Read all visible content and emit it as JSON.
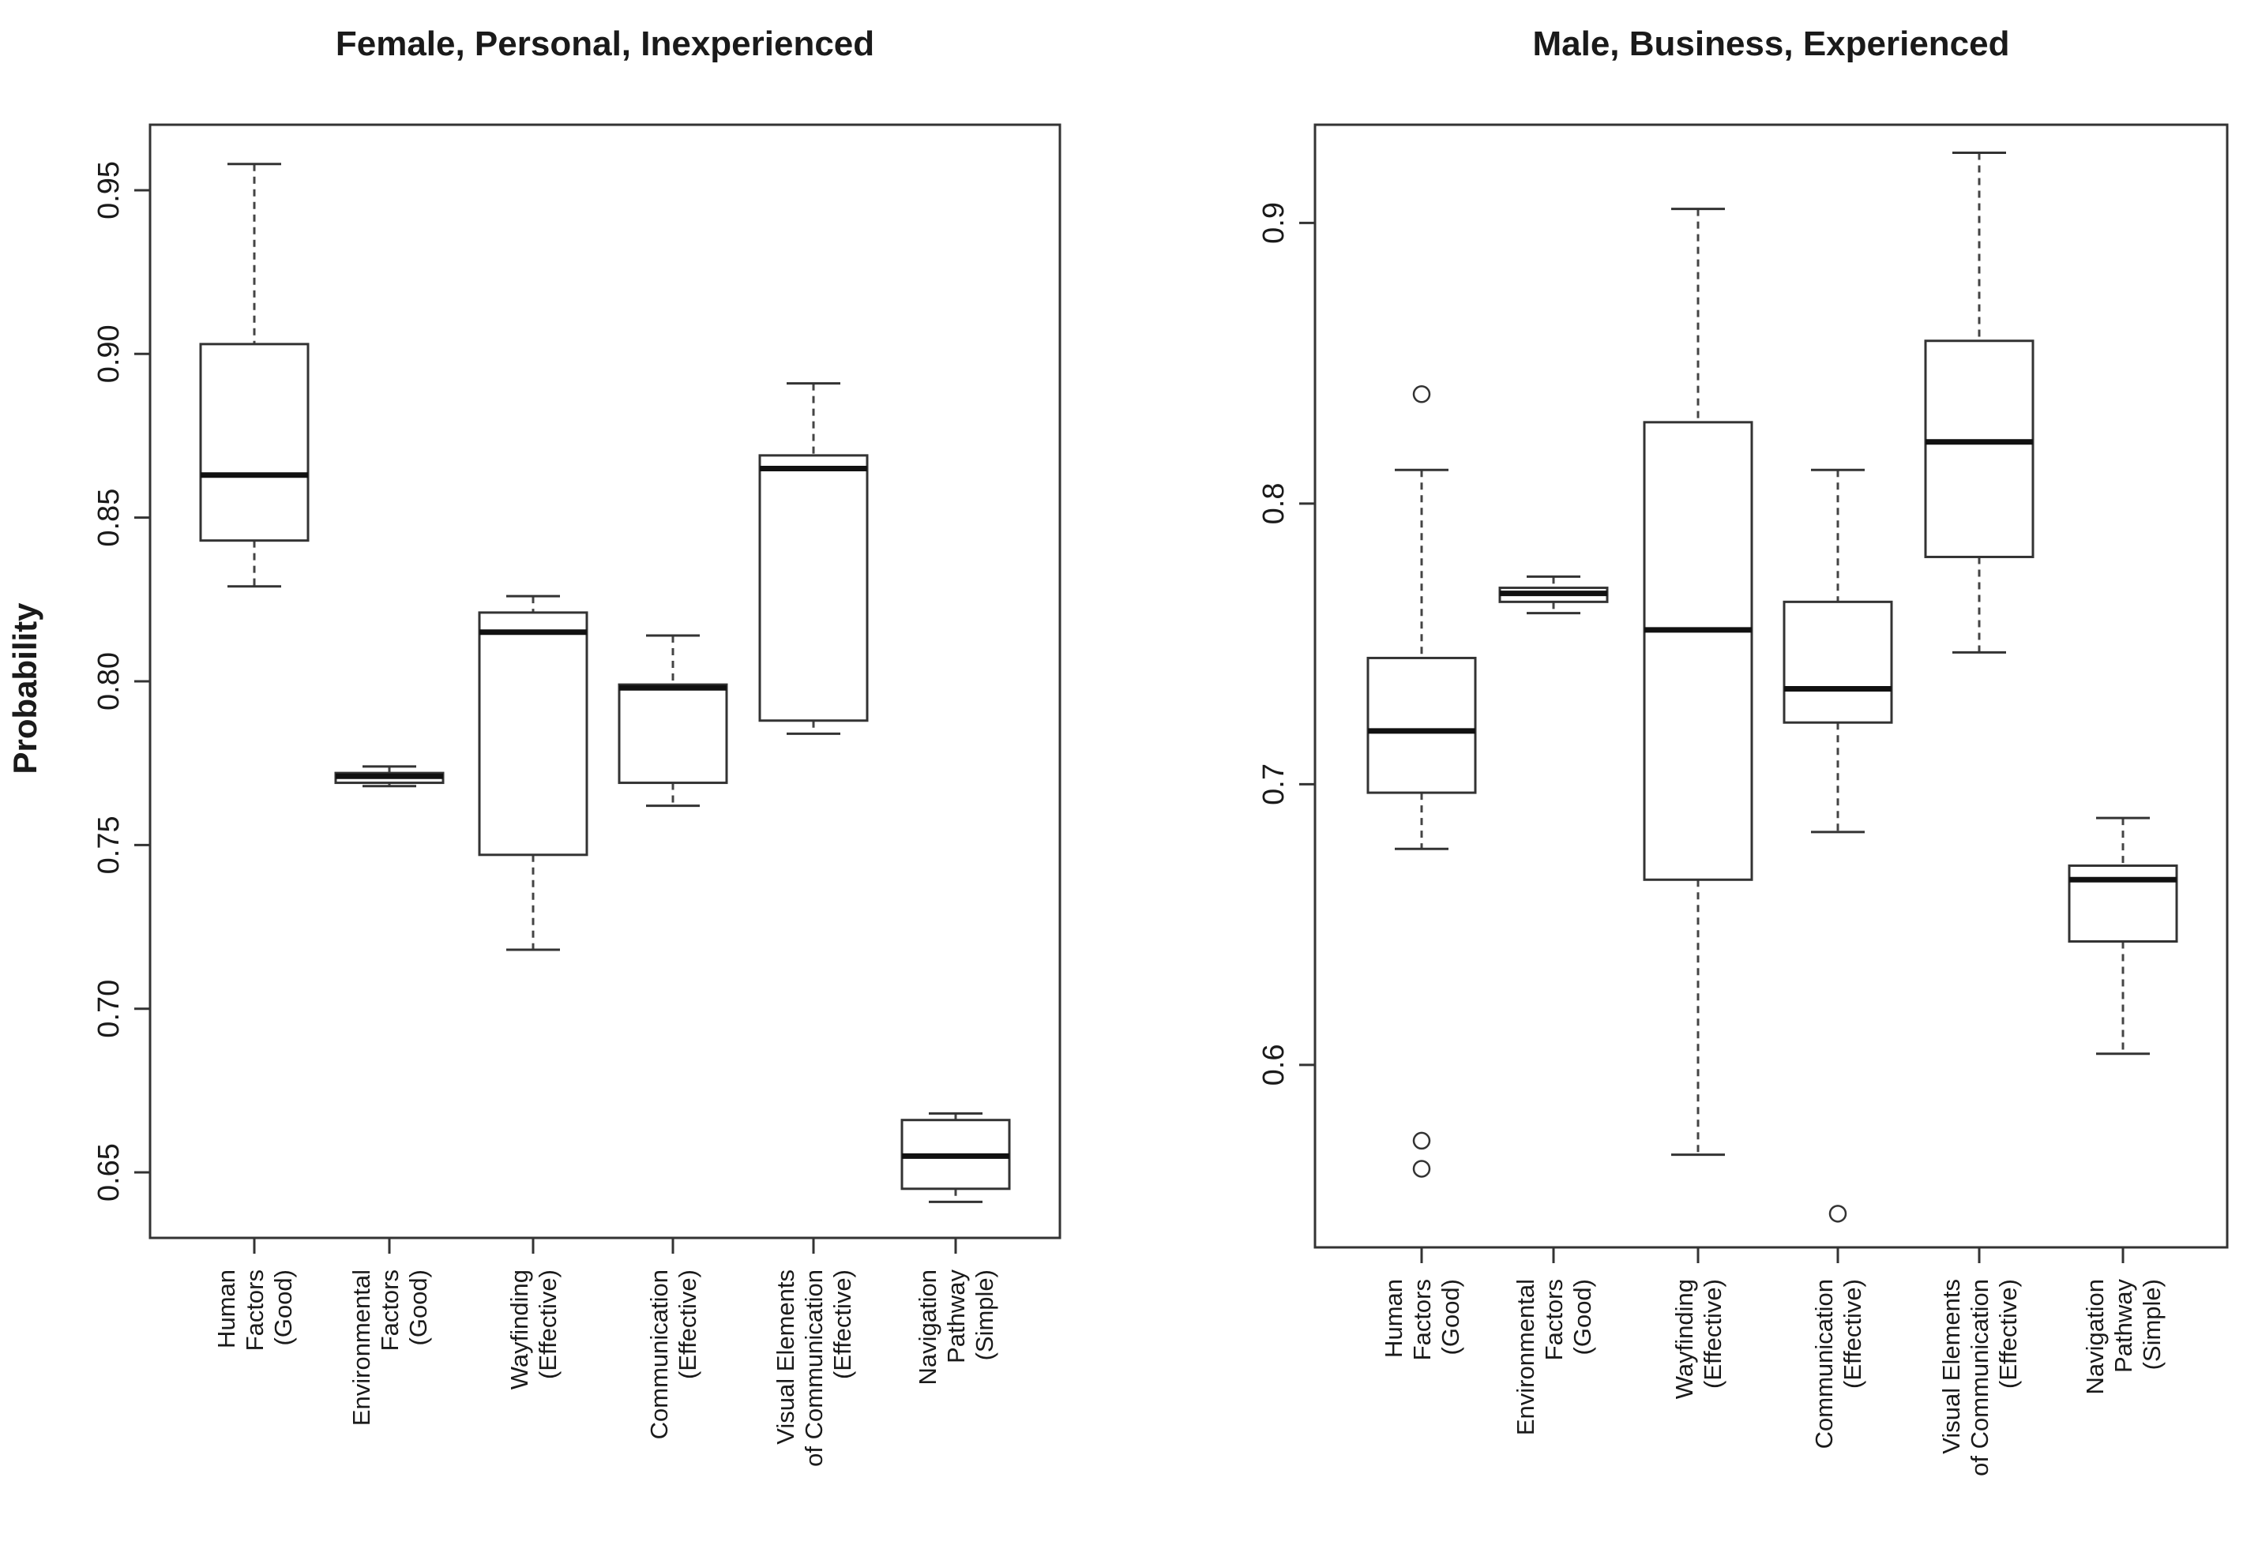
{
  "chart_data": [
    {
      "type": "boxplot",
      "title": "Female, Personal, Inexperienced",
      "xlabel": "",
      "ylabel": "Probability",
      "ylim": [
        0.63,
        0.97
      ],
      "yticks": [
        0.65,
        0.7,
        0.75,
        0.8,
        0.85,
        0.9,
        0.95
      ],
      "ytick_labels": [
        "0.65",
        "0.70",
        "0.75",
        "0.80",
        "0.85",
        "0.90",
        "0.95"
      ],
      "grid": false,
      "categories": [
        [
          "Human",
          "Factors",
          "(Good)"
        ],
        [
          "Environmental",
          "Factors",
          "(Good)"
        ],
        [
          "Wayfinding",
          "(Effective)"
        ],
        [
          "Communication",
          "(Effective)"
        ],
        [
          "Visual Elements",
          "of Communication",
          "(Effective)"
        ],
        [
          "Navigation",
          "Pathway",
          "(Simple)"
        ]
      ],
      "boxes": [
        {
          "whisker_low": 0.829,
          "q1": 0.843,
          "median": 0.863,
          "q3": 0.903,
          "whisker_high": 0.958,
          "outliers": []
        },
        {
          "whisker_low": 0.768,
          "q1": 0.769,
          "median": 0.771,
          "q3": 0.772,
          "whisker_high": 0.774,
          "outliers": []
        },
        {
          "whisker_low": 0.718,
          "q1": 0.747,
          "median": 0.815,
          "q3": 0.821,
          "whisker_high": 0.826,
          "outliers": []
        },
        {
          "whisker_low": 0.762,
          "q1": 0.769,
          "median": 0.798,
          "q3": 0.799,
          "whisker_high": 0.814,
          "outliers": []
        },
        {
          "whisker_low": 0.784,
          "q1": 0.788,
          "median": 0.865,
          "q3": 0.869,
          "whisker_high": 0.891,
          "outliers": []
        },
        {
          "whisker_low": 0.641,
          "q1": 0.645,
          "median": 0.655,
          "q3": 0.666,
          "whisker_high": 0.668,
          "outliers": []
        }
      ]
    },
    {
      "type": "boxplot",
      "title": "Male, Business, Experienced",
      "xlabel": "",
      "ylabel": "",
      "ylim": [
        0.535,
        0.935
      ],
      "yticks": [
        0.6,
        0.7,
        0.8,
        0.9
      ],
      "ytick_labels": [
        "0.6",
        "0.7",
        "0.8",
        "0.9"
      ],
      "grid": false,
      "categories": [
        [
          "Human",
          "Factors",
          "(Good)"
        ],
        [
          "Environmental",
          "Factors",
          "(Good)"
        ],
        [
          "Wayfinding",
          "(Effective)"
        ],
        [
          "Communication",
          "(Effective)"
        ],
        [
          "Visual Elements",
          "of Communication",
          "(Effective)"
        ],
        [
          "Navigation",
          "Pathway",
          "(Simple)"
        ]
      ],
      "boxes": [
        {
          "whisker_low": 0.677,
          "q1": 0.697,
          "median": 0.719,
          "q3": 0.745,
          "whisker_high": 0.812,
          "outliers": [
            0.839,
            0.573,
            0.563
          ]
        },
        {
          "whisker_low": 0.761,
          "q1": 0.765,
          "median": 0.768,
          "q3": 0.77,
          "whisker_high": 0.774,
          "outliers": []
        },
        {
          "whisker_low": 0.568,
          "q1": 0.666,
          "median": 0.755,
          "q3": 0.829,
          "whisker_high": 0.905,
          "outliers": []
        },
        {
          "whisker_low": 0.683,
          "q1": 0.722,
          "median": 0.734,
          "q3": 0.765,
          "whisker_high": 0.812,
          "outliers": [
            0.547
          ]
        },
        {
          "whisker_low": 0.747,
          "q1": 0.781,
          "median": 0.822,
          "q3": 0.858,
          "whisker_high": 0.925,
          "outliers": []
        },
        {
          "whisker_low": 0.604,
          "q1": 0.644,
          "median": 0.666,
          "q3": 0.671,
          "whisker_high": 0.688,
          "outliers": []
        }
      ]
    }
  ]
}
